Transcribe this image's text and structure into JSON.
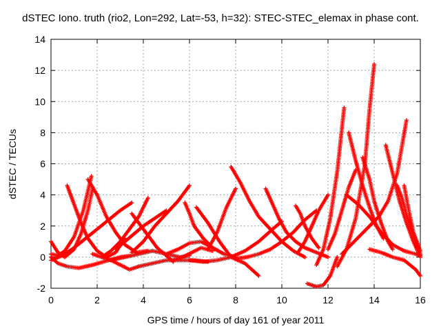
{
  "chart_data": {
    "type": "scatter",
    "title": "dSTEC Iono. truth (rio2, Lon=292, Lat=-53, h=32): STEC-STEC_elemax in phase cont.",
    "xlabel": "GPS time / hours of day 161 of year 2011",
    "ylabel": "dSTEC  / TECUs",
    "xlim": [
      0,
      16
    ],
    "ylim": [
      -2,
      14
    ],
    "x_ticks": [
      "0",
      "2",
      "4",
      "6",
      "8",
      "10",
      "12",
      "14",
      "16"
    ],
    "y_ticks": [
      "-2",
      "0",
      "2",
      "4",
      "6",
      "8",
      "10",
      "12",
      "14"
    ],
    "grid": true,
    "marker": "plus",
    "color": "#ff0000",
    "series": [
      {
        "x": [
          0.0,
          0.3,
          0.6,
          1.0,
          1.3,
          1.6,
          1.8
        ],
        "y": [
          1.0,
          0.3,
          0.0,
          0.5,
          1.5,
          3.0,
          4.4
        ]
      },
      {
        "x": [
          0.0,
          0.3,
          0.6,
          1.0,
          1.4,
          1.75
        ],
        "y": [
          0.2,
          0.1,
          0.4,
          1.3,
          3.0,
          5.2
        ]
      },
      {
        "x": [
          0.7,
          1.0,
          1.3,
          1.6,
          2.0,
          2.4,
          2.8,
          3.2
        ],
        "y": [
          4.6,
          3.4,
          2.2,
          1.2,
          0.4,
          0.0,
          0.3,
          1.2
        ]
      },
      {
        "x": [
          1.6,
          2.0,
          2.4,
          2.8,
          3.2,
          3.7,
          4.2
        ],
        "y": [
          5.0,
          4.0,
          2.6,
          1.6,
          0.8,
          0.3,
          0.4
        ]
      },
      {
        "x": [
          0.0,
          0.3,
          0.7,
          1.2,
          1.8,
          2.5,
          3.0,
          3.5
        ],
        "y": [
          0.0,
          -0.4,
          -0.6,
          -0.7,
          -0.5,
          -0.2,
          0.0,
          0.1
        ]
      },
      {
        "x": [
          0.0,
          0.5,
          1.0,
          1.5,
          2.0,
          2.5,
          3.0,
          3.5
        ],
        "y": [
          -0.2,
          0.1,
          0.6,
          1.2,
          1.8,
          2.4,
          3.0,
          3.5
        ]
      },
      {
        "x": [
          1.8,
          2.2,
          2.6,
          3.0,
          3.4,
          3.8
        ],
        "y": [
          0.2,
          0.0,
          -0.2,
          -0.5,
          -0.8,
          -0.6
        ]
      },
      {
        "x": [
          2.2,
          2.6,
          3.0,
          3.4,
          3.8,
          4.2
        ],
        "y": [
          0.0,
          0.4,
          1.0,
          1.8,
          2.6,
          3.8
        ]
      },
      {
        "x": [
          2.8,
          3.2,
          3.6,
          4.0,
          4.5,
          5.0
        ],
        "y": [
          0.5,
          1.0,
          1.5,
          2.0,
          2.5,
          3.0
        ]
      },
      {
        "x": [
          3.5,
          3.8,
          4.2,
          4.6,
          5.0,
          5.3
        ],
        "y": [
          2.8,
          2.2,
          1.4,
          0.6,
          0.1,
          -0.3
        ]
      },
      {
        "x": [
          3.5,
          4.0,
          4.5,
          5.0,
          5.5,
          6.0
        ],
        "y": [
          0.3,
          1.0,
          2.0,
          2.8,
          3.6,
          4.6
        ]
      },
      {
        "x": [
          2.6,
          3.2,
          3.8,
          4.4,
          5.0,
          5.6,
          6.0
        ],
        "y": [
          -0.2,
          0.0,
          0.2,
          0.4,
          0.2,
          0.0,
          0.1
        ]
      },
      {
        "x": [
          3.8,
          4.4,
          5.0,
          5.6,
          6.2,
          6.8
        ],
        "y": [
          -0.6,
          -0.4,
          -0.2,
          -0.2,
          -0.2,
          -0.3
        ]
      },
      {
        "x": [
          5.0,
          5.5,
          6.0,
          6.5,
          7.0,
          7.5
        ],
        "y": [
          0.2,
          0.5,
          0.9,
          1.0,
          0.6,
          0.2
        ]
      },
      {
        "x": [
          5.3,
          5.7,
          6.1,
          6.5,
          7.0
        ],
        "y": [
          -0.2,
          0.0,
          0.3,
          0.6,
          0.4
        ]
      },
      {
        "x": [
          5.8,
          6.0,
          6.2,
          6.6,
          7.0,
          7.5,
          8.0
        ],
        "y": [
          3.5,
          2.8,
          2.0,
          1.2,
          0.6,
          0.2,
          0.0
        ]
      },
      {
        "x": [
          6.3,
          6.8,
          7.3,
          7.8,
          8.4,
          9.0
        ],
        "y": [
          3.2,
          2.2,
          1.0,
          0.0,
          -0.4,
          -1.2
        ]
      },
      {
        "x": [
          6.0,
          6.6,
          7.2,
          7.8,
          8.4,
          9.0,
          9.6,
          10.0
        ],
        "y": [
          -0.2,
          -0.3,
          -0.2,
          0.0,
          0.4,
          1.0,
          1.8,
          2.3
        ]
      },
      {
        "x": [
          6.8,
          7.2,
          7.6,
          8.0
        ],
        "y": [
          0.5,
          1.6,
          3.2,
          4.4
        ]
      },
      {
        "x": [
          7.8,
          8.2,
          8.6,
          9.0,
          9.5,
          10.0,
          10.5,
          11.0
        ],
        "y": [
          5.8,
          4.8,
          3.6,
          2.6,
          1.8,
          1.0,
          0.4,
          0.0
        ]
      },
      {
        "x": [
          8.0,
          8.5,
          9.0,
          9.5,
          10.0,
          10.5,
          11.0,
          11.5
        ],
        "y": [
          -0.1,
          0.0,
          0.2,
          0.5,
          1.0,
          1.6,
          2.4,
          3.0
        ]
      },
      {
        "x": [
          9.3,
          9.6,
          9.9,
          10.2,
          10.6,
          11.0,
          11.5,
          12.0
        ],
        "y": [
          4.4,
          3.4,
          2.4,
          1.6,
          1.0,
          0.6,
          0.3,
          0.0
        ]
      },
      {
        "x": [
          10.6,
          10.8,
          11.0,
          11.3,
          11.6
        ],
        "y": [
          3.3,
          2.8,
          2.0,
          1.2,
          0.6
        ]
      },
      {
        "x": [
          10.7,
          11.0,
          11.3,
          11.6,
          12.0
        ],
        "y": [
          0.3,
          1.0,
          2.0,
          3.0,
          4.0
        ]
      },
      {
        "x": [
          11.1,
          11.5,
          11.8,
          12.1,
          12.4
        ],
        "y": [
          -1.7,
          -1.9,
          -1.8,
          -1.2,
          0.0
        ]
      },
      {
        "x": [
          11.5,
          11.8,
          12.1,
          12.4,
          12.7
        ],
        "y": [
          -0.5,
          0.5,
          2.5,
          5.5,
          9.6
        ]
      },
      {
        "x": [
          12.4,
          12.8,
          13.2,
          13.6,
          13.8,
          14.0
        ],
        "y": [
          -0.6,
          0.5,
          2.5,
          6.0,
          9.5,
          12.4
        ]
      },
      {
        "x": [
          12.0,
          12.3,
          12.6,
          12.9,
          13.2
        ],
        "y": [
          0.5,
          1.5,
          3.0,
          4.5,
          5.6
        ]
      },
      {
        "x": [
          12.9,
          13.2,
          13.5,
          13.8,
          14.1,
          14.4
        ],
        "y": [
          8.0,
          6.2,
          4.6,
          3.2,
          2.0,
          1.2
        ]
      },
      {
        "x": [
          13.5,
          13.8,
          14.0,
          14.3,
          14.6,
          14.8
        ],
        "y": [
          6.4,
          5.0,
          3.6,
          2.2,
          1.0,
          0.5
        ]
      },
      {
        "x": [
          12.6,
          13.0,
          13.4,
          13.8,
          14.2,
          14.6,
          15.0,
          15.4
        ],
        "y": [
          0.2,
          0.8,
          1.4,
          2.0,
          2.6,
          3.6,
          5.4,
          8.8
        ]
      },
      {
        "x": [
          14.5,
          14.8,
          15.1,
          15.4,
          15.7,
          16.0
        ],
        "y": [
          7.2,
          5.4,
          3.6,
          2.2,
          1.0,
          0.0
        ]
      },
      {
        "x": [
          15.0,
          15.2,
          15.5,
          15.8,
          16.0
        ],
        "y": [
          4.6,
          3.8,
          2.2,
          1.0,
          0.2
        ]
      },
      {
        "x": [
          15.3,
          15.5,
          15.7,
          16.0
        ],
        "y": [
          4.6,
          3.0,
          1.6,
          0.4
        ]
      },
      {
        "x": [
          13.8,
          14.3,
          14.8,
          15.3,
          15.8,
          16.0
        ],
        "y": [
          0.5,
          0.3,
          0.0,
          -0.2,
          -0.8,
          -1.2
        ]
      },
      {
        "x": [
          12.8,
          13.3,
          13.8,
          14.3,
          14.8,
          15.3,
          15.8,
          16.0
        ],
        "y": [
          4.0,
          3.4,
          2.6,
          1.6,
          0.8,
          0.4,
          0.2,
          0.1
        ]
      }
    ]
  }
}
